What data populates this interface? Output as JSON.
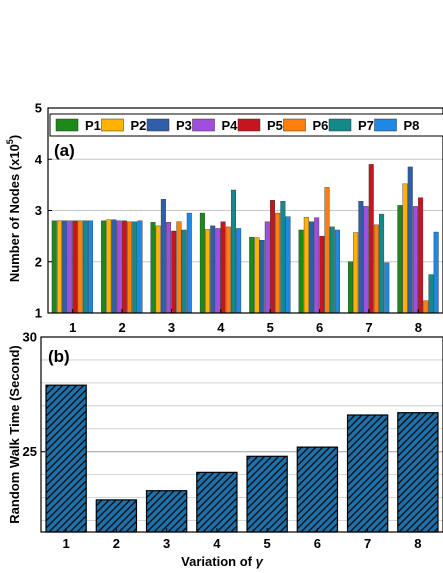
{
  "chart_data": [
    {
      "panel": "(a)",
      "type": "bar",
      "ylabel": "Number of Nodes (x10",
      "ylabel_exp": "5",
      "ylabel_close": ")",
      "ylim": [
        1,
        5
      ],
      "yticks": [
        "1",
        "2",
        "3",
        "4",
        "5"
      ],
      "categories": [
        "1",
        "2",
        "3",
        "4",
        "5",
        "6",
        "7",
        "8"
      ],
      "grid": true,
      "legend_position": "top",
      "series": [
        {
          "name": "P1",
          "color": "#1a8a1a",
          "values": [
            2.8,
            2.8,
            2.77,
            2.95,
            2.48,
            2.62,
            2.0,
            3.1
          ]
        },
        {
          "name": "P2",
          "color": "#ffb300",
          "values": [
            2.8,
            2.82,
            2.7,
            2.63,
            2.47,
            2.87,
            2.57,
            3.52
          ]
        },
        {
          "name": "P3",
          "color": "#2f5fa8",
          "values": [
            2.8,
            2.82,
            3.22,
            2.7,
            2.42,
            2.78,
            3.18,
            3.85
          ]
        },
        {
          "name": "P4",
          "color": "#a04ee0",
          "values": [
            2.8,
            2.8,
            2.77,
            2.65,
            2.78,
            2.86,
            3.08,
            3.08
          ]
        },
        {
          "name": "P5",
          "color": "#c8141e",
          "values": [
            2.8,
            2.8,
            2.6,
            2.78,
            3.2,
            2.5,
            3.9,
            3.25
          ]
        },
        {
          "name": "P6",
          "color": "#ff7f0e",
          "values": [
            2.8,
            2.78,
            2.78,
            2.68,
            2.95,
            3.45,
            2.72,
            1.24
          ]
        },
        {
          "name": "P7",
          "color": "#138a8a",
          "values": [
            2.8,
            2.78,
            2.62,
            3.4,
            3.18,
            2.68,
            2.93,
            1.75
          ]
        },
        {
          "name": "P8",
          "color": "#1e88e5",
          "values": [
            2.8,
            2.8,
            2.95,
            2.65,
            2.88,
            2.62,
            1.98,
            2.58
          ]
        }
      ]
    },
    {
      "panel": "(b)",
      "type": "bar",
      "ylabel": "Random Walk Time (Second)",
      "xlabel_prefix": "Variation of ",
      "xlabel_symbol": "γ",
      "ylim": [
        21.5,
        30
      ],
      "yticks": [
        "25",
        "30"
      ],
      "categories": [
        "1",
        "2",
        "3",
        "4",
        "5",
        "6",
        "7",
        "8"
      ],
      "grid": true,
      "bar_color": "#1f6fa8",
      "hatch": "diagonal",
      "values": [
        27.9,
        22.9,
        23.3,
        24.1,
        24.8,
        25.2,
        26.6,
        26.7
      ]
    }
  ]
}
